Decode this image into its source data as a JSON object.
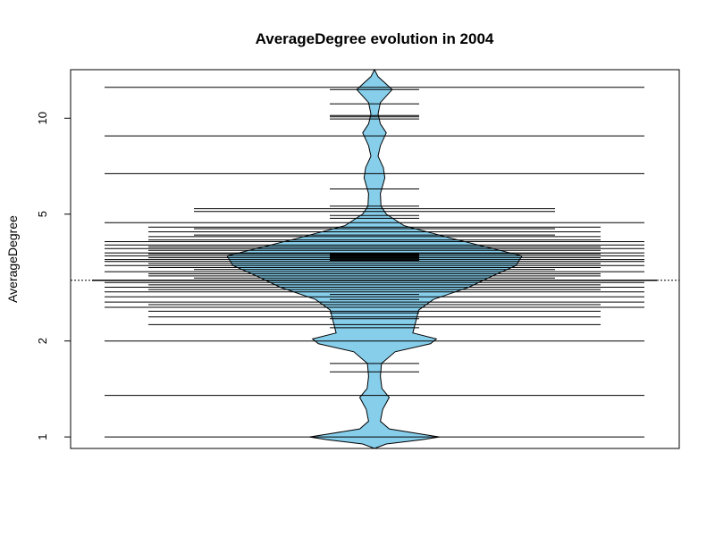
{
  "chart_data": {
    "type": "beanplot",
    "title": "AverageDegree evolution in 2004",
    "xlabel": "",
    "ylabel": "AverageDegree",
    "y_scale": "log",
    "ylim": [
      0.92,
      14.2
    ],
    "y_ticks": [
      1,
      2,
      5,
      10
    ],
    "y_tick_labels": [
      "1",
      "2",
      "5",
      "10"
    ],
    "overall_mean": 3.1,
    "grid": false,
    "legend": "none",
    "fill_color": "#87CEEB",
    "line_color": "#000000",
    "density_profile": [
      [
        0.92,
        0.0
      ],
      [
        0.95,
        0.04
      ],
      [
        0.98,
        0.16
      ],
      [
        1.0,
        0.22
      ],
      [
        1.02,
        0.16
      ],
      [
        1.06,
        0.05
      ],
      [
        1.12,
        0.02
      ],
      [
        1.22,
        0.028
      ],
      [
        1.33,
        0.05
      ],
      [
        1.42,
        0.025
      ],
      [
        1.55,
        0.02
      ],
      [
        1.7,
        0.024
      ],
      [
        1.85,
        0.07
      ],
      [
        1.96,
        0.19
      ],
      [
        2.03,
        0.21
      ],
      [
        2.12,
        0.13
      ],
      [
        2.3,
        0.14
      ],
      [
        2.5,
        0.15
      ],
      [
        2.7,
        0.2
      ],
      [
        2.95,
        0.32
      ],
      [
        3.2,
        0.4
      ],
      [
        3.45,
        0.48
      ],
      [
        3.7,
        0.5
      ],
      [
        3.9,
        0.4
      ],
      [
        4.2,
        0.26
      ],
      [
        4.6,
        0.1
      ],
      [
        5.0,
        0.04
      ],
      [
        5.3,
        0.022
      ],
      [
        5.8,
        0.02
      ],
      [
        6.5,
        0.035
      ],
      [
        7.0,
        0.03
      ],
      [
        7.6,
        0.012
      ],
      [
        8.2,
        0.02
      ],
      [
        9.0,
        0.04
      ],
      [
        9.6,
        0.02
      ],
      [
        10.3,
        0.012
      ],
      [
        11.2,
        0.02
      ],
      [
        12.3,
        0.06
      ],
      [
        12.8,
        0.04
      ],
      [
        13.5,
        0.012
      ],
      [
        14.2,
        0.0
      ]
    ],
    "long_lines": [
      1.0,
      1.35,
      2.0,
      2.55,
      2.65,
      2.75,
      2.85,
      2.95,
      3.05,
      3.3,
      3.45,
      3.55,
      3.6,
      3.7,
      3.78,
      3.9,
      4.0,
      4.1,
      4.7,
      6.7,
      8.8,
      12.5
    ],
    "medium_lines": [
      2.25,
      2.38,
      2.48,
      2.6,
      2.9,
      3.0,
      3.2,
      3.25,
      3.4,
      3.5,
      3.65,
      3.75,
      3.85,
      3.95,
      4.15,
      4.25,
      4.4,
      4.55
    ],
    "short_lines": [
      5.2,
      5.1,
      3.35,
      3.15,
      4.3,
      4.5
    ],
    "narrow_lines": [
      1.6,
      1.7,
      9.95,
      10.1,
      10.2,
      12.3,
      11.1,
      6.0,
      5.3,
      4.85,
      4.95,
      3.66,
      3.68,
      3.7,
      3.72,
      3.74,
      3.76,
      3.64,
      3.62,
      3.58,
      2.2,
      2.35,
      2.45,
      2.7,
      2.8,
      3.1
    ]
  }
}
